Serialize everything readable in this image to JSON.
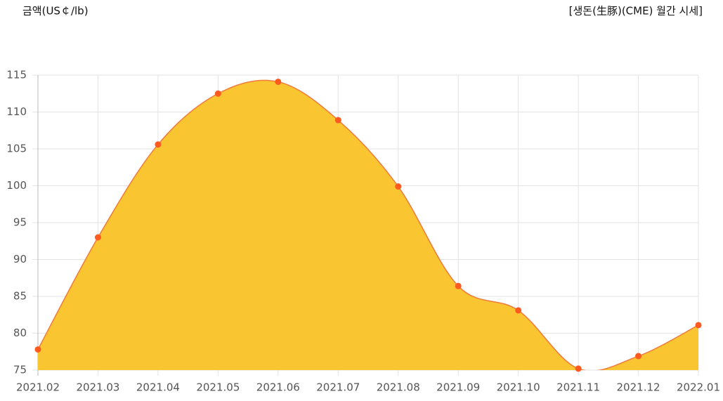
{
  "chart_data": {
    "type": "area",
    "y_axis_label": "금액(US￠/lb)",
    "title": "[생돈(生豚)(CME) 월간 시세]",
    "categories": [
      "2021.02",
      "2021.03",
      "2021.04",
      "2021.05",
      "2021.06",
      "2021.07",
      "2021.08",
      "2021.09",
      "2021.10",
      "2021.11",
      "2021.12",
      "2022.01"
    ],
    "values": [
      77.8,
      93.0,
      105.6,
      112.5,
      114.1,
      108.9,
      99.9,
      86.4,
      83.1,
      75.2,
      76.9,
      81.1
    ],
    "color": "#f07a3a",
    "fill_color": "#f9c531",
    "point_color": "#ff5a1f",
    "ylim": [
      75,
      115
    ],
    "yticks": [
      75,
      80,
      85,
      90,
      95,
      100,
      105,
      110,
      115
    ],
    "grid": true
  }
}
